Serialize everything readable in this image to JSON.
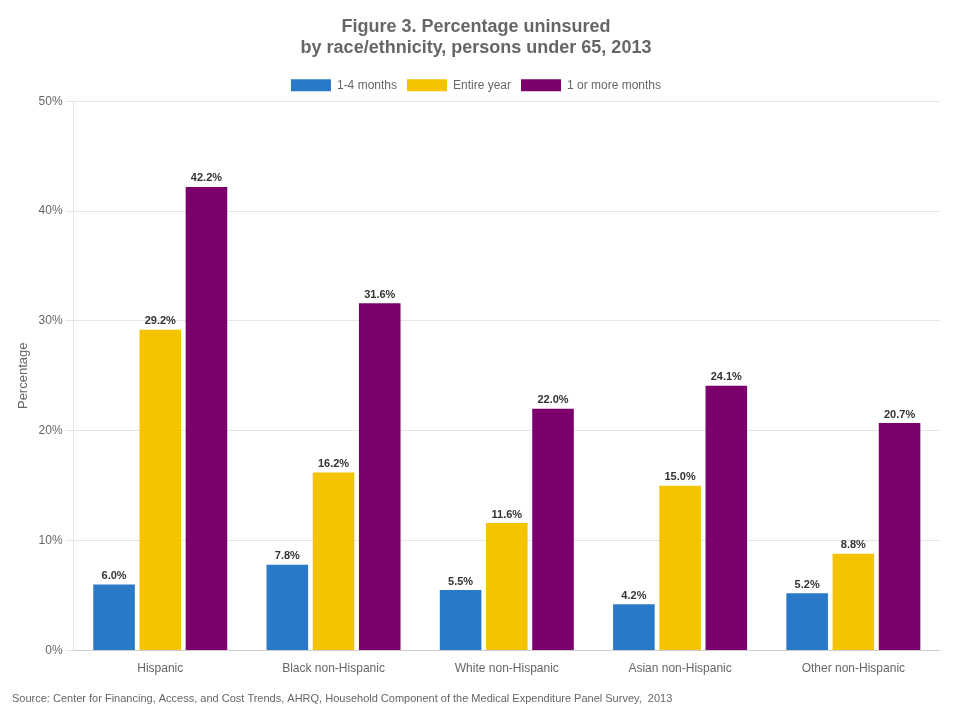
{
  "chart_data": {
    "type": "bar",
    "title": "Figure 3. Percentage uninsured\nby race/ethnicity, persons under 65, 2013",
    "y_label": "Percentage",
    "annotations": [
      "Source: Center for Financing, Access, and Cost Trends, AHRQ, Household Component of the Medical Expenditure Panel Survey,  2013"
    ],
    "categories": [
      "Hispanic",
      "Black non-Hispanic",
      "White non-Hispanic",
      "Asian non-Hispanic",
      "Other non-Hispanic"
    ],
    "series": [
      {
        "name": "1-4 months",
        "color": "#2979C8",
        "values": [
          6.0,
          7.8,
          5.5,
          4.2,
          5.2
        ],
        "value_labels": [
          "6.0%",
          "7.8%",
          "5.5%",
          "4.2%",
          "5.2%"
        ]
      },
      {
        "name": "Entire year",
        "color": "#F5C400",
        "values": [
          29.2,
          16.2,
          11.6,
          15.0,
          8.8
        ],
        "value_labels": [
          "29.2%",
          "16.2%",
          "11.6%",
          "15.0%",
          "8.8%"
        ]
      },
      {
        "name": "1 or more months",
        "color": "#7B006E",
        "values": [
          42.2,
          31.6,
          22.0,
          24.1,
          20.7
        ],
        "value_labels": [
          "42.2%",
          "31.6%",
          "22.0%",
          "24.1%",
          "20.7%"
        ]
      }
    ],
    "ylim": [
      0,
      50
    ],
    "yticks": [
      {
        "value": 0,
        "label": "0%"
      },
      {
        "value": 10,
        "label": "10%"
      },
      {
        "value": 20,
        "label": "20%"
      },
      {
        "value": 30,
        "label": "30%"
      },
      {
        "value": 40,
        "label": "40%"
      },
      {
        "value": 50,
        "label": "50%"
      }
    ],
    "grid": true,
    "legend": "top",
    "data_labels": true
  }
}
